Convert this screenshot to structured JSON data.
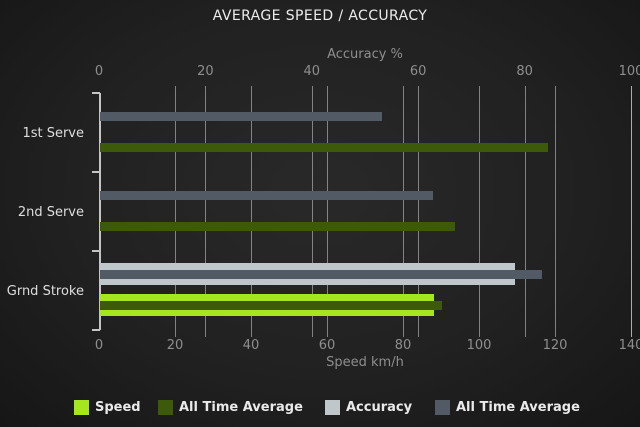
{
  "title": "AVERAGE SPEED / ACCURACY",
  "colors": {
    "speed": "#A6E61E",
    "speed_avg": "#3D5A0A",
    "accuracy": "#C0C7CB",
    "accuracy_avg": "#525B65",
    "axis_line": "#C4C4C4",
    "grid_line": "#8C8C8C",
    "tick_label": "#8E8E8E",
    "category_label": "#DEDEDE",
    "title_color": "#ECECEC",
    "legend_label": "#EAEAEA",
    "background": "#212121"
  },
  "chart_data": {
    "type": "bar",
    "orientation": "horizontal",
    "title": "AVERAGE SPEED / ACCURACY",
    "categories": [
      "1st Serve",
      "2nd Serve",
      "Grnd Stroke"
    ],
    "axes": {
      "top": {
        "label": "Accuracy %",
        "min": 0,
        "max": 100,
        "ticks": [
          0,
          20,
          40,
          60,
          80,
          100
        ]
      },
      "bottom": {
        "label": "Speed km/h",
        "min": 0,
        "max": 140,
        "ticks": [
          0,
          20,
          40,
          60,
          80,
          100,
          120,
          140
        ]
      }
    },
    "series": [
      {
        "name": "Speed",
        "axis": "bottom",
        "color_key": "speed",
        "style": "thick",
        "values": [
          null,
          null,
          88
        ]
      },
      {
        "name": "All Time Average",
        "axis": "bottom",
        "color_key": "speed_avg",
        "style": "thin",
        "values": [
          118,
          93.5,
          90
        ]
      },
      {
        "name": "Accuracy",
        "axis": "top",
        "color_key": "accuracy",
        "style": "thick",
        "values": [
          null,
          null,
          78
        ]
      },
      {
        "name": "All Time Average",
        "axis": "top",
        "color_key": "accuracy_avg",
        "style": "thin",
        "values": [
          53,
          62.5,
          83
        ]
      }
    ],
    "legend": [
      {
        "label": "Speed",
        "color_key": "speed"
      },
      {
        "label": "All Time Average",
        "color_key": "speed_avg"
      },
      {
        "label": "Accuracy",
        "color_key": "accuracy"
      },
      {
        "label": "All Time Average",
        "color_key": "accuracy_avg"
      }
    ],
    "grid": true,
    "legend_position": "bottom"
  }
}
